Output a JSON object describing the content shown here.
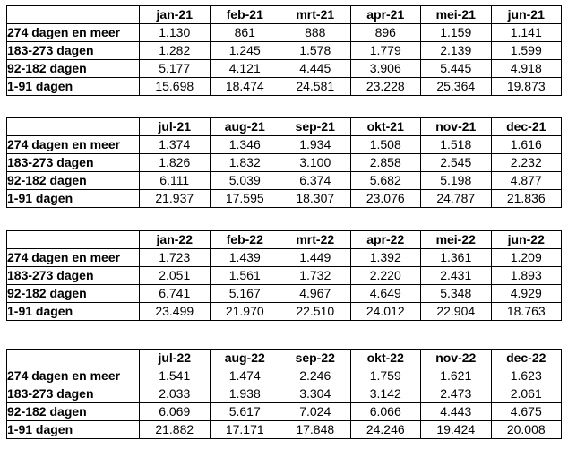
{
  "report": {
    "row_labels": [
      "274 dagen en meer",
      "183-273 dagen",
      "92-182 dagen",
      "1-91 dagen"
    ],
    "tables": [
      {
        "months": [
          "jan-21",
          "feb-21",
          "mrt-21",
          "apr-21",
          "mei-21",
          "jun-21"
        ],
        "rows": [
          [
            "1.130",
            "861",
            "888",
            "896",
            "1.159",
            "1.141"
          ],
          [
            "1.282",
            "1.245",
            "1.578",
            "1.779",
            "2.139",
            "1.599"
          ],
          [
            "5.177",
            "4.121",
            "4.445",
            "3.906",
            "5.445",
            "4.918"
          ],
          [
            "15.698",
            "18.474",
            "24.581",
            "23.228",
            "25.364",
            "19.873"
          ]
        ]
      },
      {
        "months": [
          "jul-21",
          "aug-21",
          "sep-21",
          "okt-21",
          "nov-21",
          "dec-21"
        ],
        "rows": [
          [
            "1.374",
            "1.346",
            "1.934",
            "1.508",
            "1.518",
            "1.616"
          ],
          [
            "1.826",
            "1.832",
            "3.100",
            "2.858",
            "2.545",
            "2.232"
          ],
          [
            "6.111",
            "5.039",
            "6.374",
            "5.682",
            "5.198",
            "4.877"
          ],
          [
            "21.937",
            "17.595",
            "18.307",
            "23.076",
            "24.787",
            "21.836"
          ]
        ]
      },
      {
        "months": [
          "jan-22",
          "feb-22",
          "mrt-22",
          "apr-22",
          "mei-22",
          "jun-22"
        ],
        "rows": [
          [
            "1.723",
            "1.439",
            "1.449",
            "1.392",
            "1.361",
            "1.209"
          ],
          [
            "2.051",
            "1.561",
            "1.732",
            "2.220",
            "2.431",
            "1.893"
          ],
          [
            "6.741",
            "5.167",
            "4.967",
            "4.649",
            "5.348",
            "4.929"
          ],
          [
            "23.499",
            "21.970",
            "22.510",
            "24.012",
            "22.904",
            "18.763"
          ]
        ]
      },
      {
        "months": [
          "jul-22",
          "aug-22",
          "sep-22",
          "okt-22",
          "nov-22",
          "dec-22"
        ],
        "rows": [
          [
            "1.541",
            "1.474",
            "2.246",
            "1.759",
            "1.621",
            "1.623"
          ],
          [
            "2.033",
            "1.938",
            "3.304",
            "3.142",
            "2.473",
            "2.061"
          ],
          [
            "6.069",
            "5.617",
            "7.024",
            "6.066",
            "4.443",
            "4.675"
          ],
          [
            "21.882",
            "17.171",
            "17.848",
            "24.246",
            "19.424",
            "20.008"
          ]
        ]
      }
    ],
    "colors": {
      "background": "#ffffff",
      "text": "#000000",
      "border": "#000000"
    }
  }
}
